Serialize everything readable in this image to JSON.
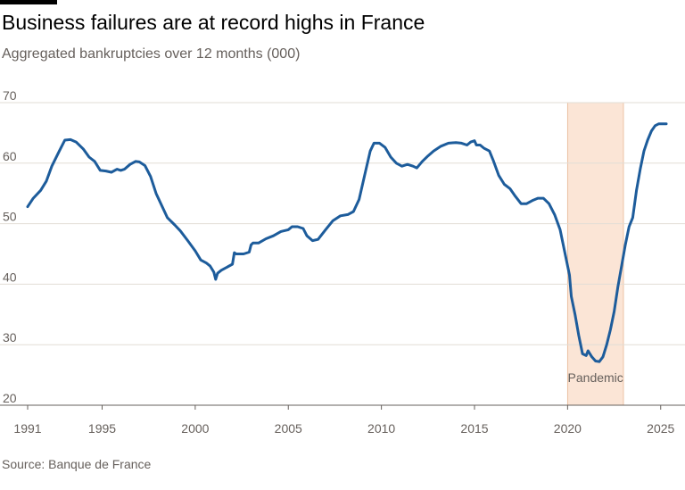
{
  "header": {
    "title": "Business failures are at record highs in France",
    "subtitle": "Aggregated bankruptcies over 12 months (000)"
  },
  "footer": {
    "source": "Source: Banque de France"
  },
  "colors": {
    "line": "#1d5c9b",
    "shade": "#fbe5d6",
    "grid": "#e2ddd6",
    "axis": "#66605c"
  },
  "chart_data": {
    "type": "line",
    "title": "Business failures are at record highs in France",
    "subtitle": "Aggregated bankruptcies over 12 months (000)",
    "ylim": [
      20,
      70
    ],
    "yticks": [
      20,
      30,
      40,
      50,
      60,
      70
    ],
    "xlim": [
      1991,
      2025.3
    ],
    "xticks": [
      1991,
      1995,
      2000,
      2005,
      2010,
      2015,
      2020,
      2025
    ],
    "grid": true,
    "annotations": [
      {
        "label": "Pandemic",
        "x_start": 2020,
        "x_end": 2023
      }
    ],
    "series": [
      {
        "x": [
          1991.0,
          1991.3,
          1991.7,
          1992.0,
          1992.3,
          1992.7,
          1993.0,
          1993.3,
          1993.6,
          1994.0,
          1994.3,
          1994.6,
          1994.9,
          1995.2,
          1995.5,
          1995.8,
          1996.0,
          1996.2,
          1996.5,
          1996.8,
          1997.0,
          1997.3,
          1997.6,
          1997.9,
          1998.2,
          1998.5,
          1998.9,
          1999.2,
          1999.6,
          2000.0,
          2000.3,
          2000.6,
          2000.8,
          2001.0,
          2001.1,
          2001.2,
          2001.4,
          2001.7,
          2002.0,
          2002.1,
          2002.2,
          2002.6,
          2002.9,
          2003.0,
          2003.1,
          2003.4,
          2003.8,
          2004.2,
          2004.6,
          2005.0,
          2005.2,
          2005.5,
          2005.8,
          2006.0,
          2006.3,
          2006.6,
          2007.0,
          2007.4,
          2007.8,
          2008.2,
          2008.5,
          2008.8,
          2009.1,
          2009.4,
          2009.6,
          2009.9,
          2010.2,
          2010.5,
          2010.8,
          2011.1,
          2011.4,
          2011.7,
          2011.9,
          2012.2,
          2012.5,
          2012.8,
          2013.2,
          2013.6,
          2014.0,
          2014.3,
          2014.6,
          2014.8,
          2015.0,
          2015.1,
          2015.3,
          2015.5,
          2015.8,
          2016.0,
          2016.3,
          2016.6,
          2016.9,
          2017.2,
          2017.5,
          2017.8,
          2018.1,
          2018.4,
          2018.7,
          2019.0,
          2019.3,
          2019.6,
          2019.9,
          2020.1,
          2020.2,
          2020.4,
          2020.6,
          2020.8,
          2021.0,
          2021.1,
          2021.3,
          2021.5,
          2021.7,
          2021.9,
          2022.1,
          2022.3,
          2022.5,
          2022.7,
          2022.9,
          2023.1,
          2023.3,
          2023.5,
          2023.7,
          2023.9,
          2024.1,
          2024.3,
          2024.5,
          2024.7,
          2024.9,
          2025.1,
          2025.3
        ],
        "values": [
          52.8,
          54.2,
          55.5,
          57.0,
          59.5,
          62.0,
          63.8,
          63.9,
          63.5,
          62.3,
          61.0,
          60.3,
          58.8,
          58.7,
          58.5,
          59.0,
          58.8,
          59.0,
          59.8,
          60.3,
          60.2,
          59.6,
          57.8,
          55.0,
          53.0,
          51.0,
          49.8,
          48.8,
          47.2,
          45.5,
          44.0,
          43.5,
          43.0,
          42.0,
          40.8,
          41.8,
          42.3,
          42.8,
          43.3,
          45.2,
          45.0,
          45.0,
          45.3,
          46.5,
          46.8,
          46.8,
          47.5,
          48.0,
          48.7,
          49.0,
          49.5,
          49.5,
          49.2,
          48.0,
          47.2,
          47.4,
          49.0,
          50.5,
          51.3,
          51.5,
          52.0,
          54.0,
          58.0,
          62.0,
          63.3,
          63.3,
          62.6,
          61.0,
          60.0,
          59.5,
          59.8,
          59.5,
          59.2,
          60.3,
          61.2,
          62.0,
          62.8,
          63.3,
          63.4,
          63.3,
          63.0,
          63.5,
          63.7,
          63.0,
          63.0,
          62.5,
          62.0,
          60.5,
          58.0,
          56.5,
          55.8,
          54.5,
          53.3,
          53.3,
          53.8,
          54.2,
          54.2,
          53.3,
          51.5,
          49.0,
          44.5,
          41.5,
          38.0,
          35.0,
          31.5,
          28.5,
          28.2,
          29.0,
          28.0,
          27.3,
          27.2,
          28.0,
          30.0,
          32.5,
          35.5,
          39.5,
          43.0,
          46.5,
          49.5,
          51.0,
          55.5,
          59.0,
          62.0,
          63.8,
          65.3,
          66.2,
          66.5,
          66.5,
          66.5
        ]
      }
    ]
  }
}
